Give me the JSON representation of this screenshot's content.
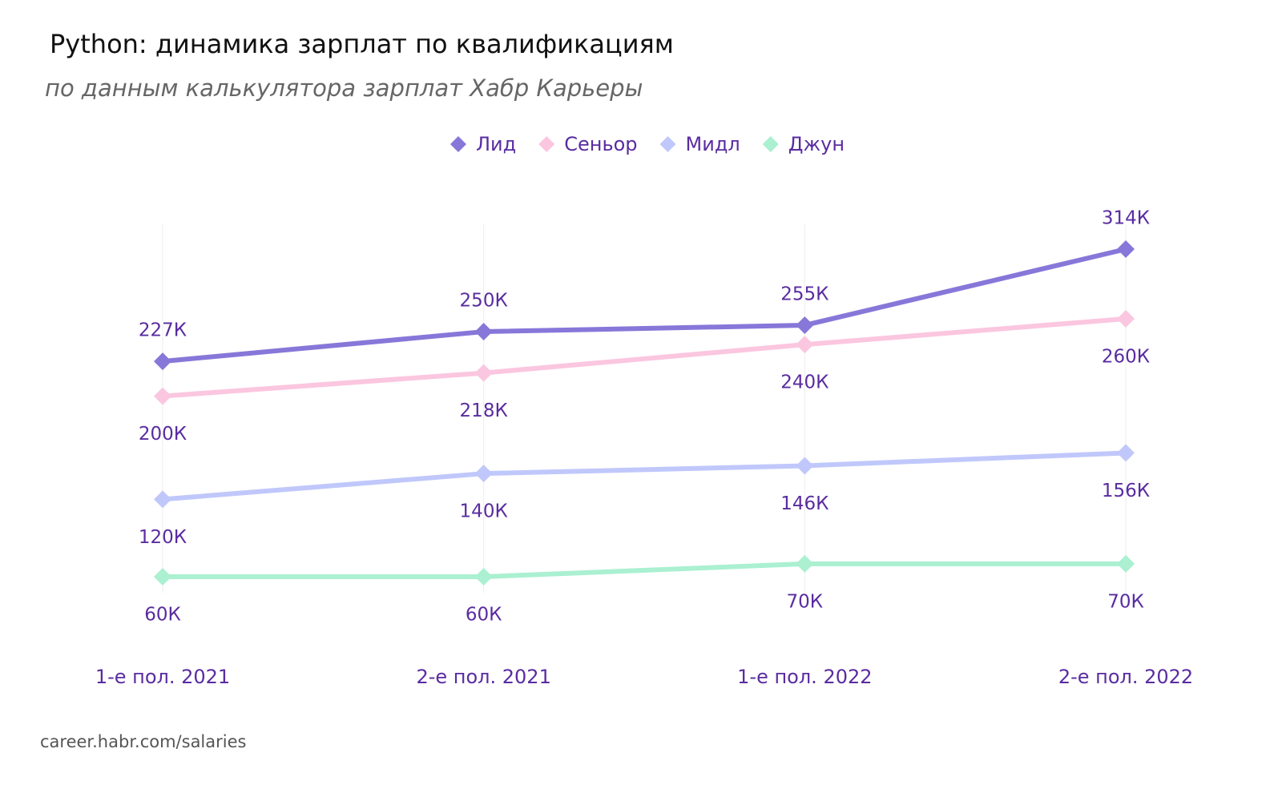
{
  "chart_data": {
    "type": "line",
    "title": "Python: динамика зарплат по квалификациям",
    "subtitle": "по данным калькулятора зарплат Хабр Карьеры",
    "source": "career.habr.com/salaries",
    "categories": [
      "1-е пол. 2021",
      "2-е пол. 2021",
      "1-е пол. 2022",
      "2-е пол. 2022"
    ],
    "series": [
      {
        "name": "Лид",
        "color": "#8777d9",
        "values": [
          227,
          250,
          255,
          314
        ],
        "value_labels": [
          "227К",
          "250К",
          "255К",
          "314К"
        ]
      },
      {
        "name": "Сеньор",
        "color": "#fbc6e0",
        "values": [
          200,
          218,
          240,
          260
        ],
        "value_labels": [
          "200К",
          "218К",
          "240К",
          "260К"
        ]
      },
      {
        "name": "Мидл",
        "color": "#c0c8fb",
        "values": [
          120,
          140,
          146,
          156
        ],
        "value_labels": [
          "120К",
          "140К",
          "146К",
          "156К"
        ]
      },
      {
        "name": "Джун",
        "color": "#aaf0d1",
        "values": [
          60,
          60,
          70,
          70
        ],
        "value_labels": [
          "60К",
          "60К",
          "70К",
          "70К"
        ]
      }
    ]
  }
}
